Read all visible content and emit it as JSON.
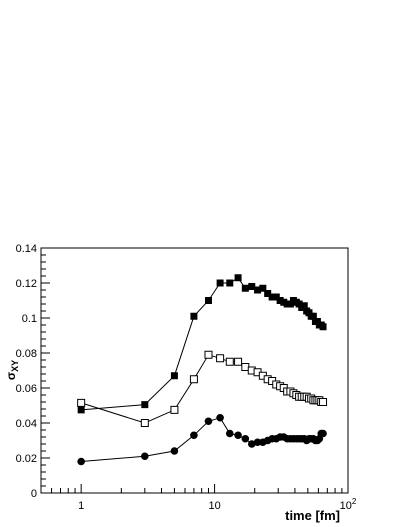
{
  "chart_data": {
    "type": "scatter",
    "x_scale": "log",
    "xlim": [
      0.5,
      100
    ],
    "ylim": [
      0,
      0.14
    ],
    "xlabel": "time [fm]",
    "ylabel": "σ",
    "ylabel_sub": "XY",
    "x_ticks": [
      {
        "value": 1,
        "label": "1"
      },
      {
        "value": 10,
        "label": "10"
      },
      {
        "value": 100,
        "label": "10",
        "sup": "2"
      }
    ],
    "y_ticks": [
      {
        "value": 0,
        "label": "0"
      },
      {
        "value": 0.02,
        "label": "0.02"
      },
      {
        "value": 0.04,
        "label": "0.04"
      },
      {
        "value": 0.06,
        "label": "0.06"
      },
      {
        "value": 0.08,
        "label": "0.08"
      },
      {
        "value": 0.1,
        "label": "0.1"
      },
      {
        "value": 0.12,
        "label": "0.12"
      },
      {
        "value": 0.14,
        "label": "0.14"
      }
    ],
    "grid": false,
    "series": [
      {
        "marker": "filled-square",
        "x": [
          1,
          3,
          5,
          7,
          9,
          11,
          13,
          15,
          17,
          19,
          21,
          23,
          25,
          27,
          29,
          31,
          33,
          35,
          37,
          39,
          41,
          43,
          45,
          47,
          49,
          51,
          53,
          55,
          57,
          59,
          61,
          63,
          65
        ],
        "y": [
          0.0475,
          0.0505,
          0.067,
          0.101,
          0.11,
          0.12,
          0.12,
          0.123,
          0.117,
          0.118,
          0.116,
          0.117,
          0.114,
          0.112,
          0.112,
          0.11,
          0.109,
          0.108,
          0.108,
          0.11,
          0.109,
          0.108,
          0.106,
          0.107,
          0.104,
          0.103,
          0.101,
          0.101,
          0.098,
          0.098,
          0.096,
          0.096,
          0.095
        ]
      },
      {
        "marker": "open-square",
        "x": [
          1,
          3,
          5,
          7,
          9,
          11,
          13,
          15,
          17,
          19,
          21,
          23,
          25,
          27,
          29,
          31,
          33,
          35,
          37,
          39,
          41,
          43,
          45,
          47,
          49,
          51,
          53,
          55,
          57,
          59,
          61,
          63,
          65
        ],
        "y": [
          0.0515,
          0.04,
          0.0475,
          0.065,
          0.079,
          0.077,
          0.075,
          0.075,
          0.072,
          0.07,
          0.069,
          0.067,
          0.065,
          0.064,
          0.062,
          0.061,
          0.06,
          0.058,
          0.058,
          0.057,
          0.056,
          0.055,
          0.055,
          0.055,
          0.055,
          0.054,
          0.054,
          0.053,
          0.053,
          0.053,
          0.053,
          0.052,
          0.052
        ]
      },
      {
        "marker": "filled-circle",
        "x": [
          1,
          3,
          5,
          7,
          9,
          11,
          13,
          15,
          17,
          19,
          21,
          23,
          25,
          27,
          29,
          31,
          33,
          35,
          37,
          39,
          41,
          43,
          45,
          47,
          49,
          51,
          53,
          55,
          57,
          59,
          61,
          63,
          65
        ],
        "y": [
          0.018,
          0.021,
          0.024,
          0.033,
          0.041,
          0.043,
          0.034,
          0.033,
          0.031,
          0.028,
          0.029,
          0.029,
          0.03,
          0.031,
          0.031,
          0.032,
          0.032,
          0.031,
          0.031,
          0.031,
          0.031,
          0.031,
          0.031,
          0.031,
          0.03,
          0.031,
          0.031,
          0.031,
          0.03,
          0.03,
          0.031,
          0.034,
          0.034
        ]
      }
    ]
  }
}
